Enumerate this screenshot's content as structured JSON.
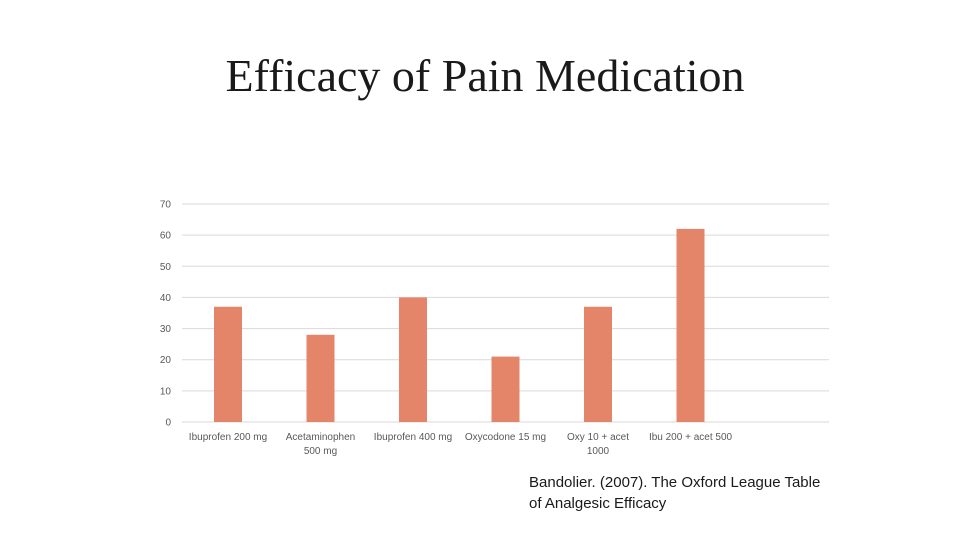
{
  "slide": {
    "title": "Efficacy of Pain Medication",
    "citation": "Bandolier. (2007). The Oxford League Table of Analgesic Efficacy"
  },
  "chart_data": {
    "type": "bar",
    "title": "",
    "xlabel": "",
    "ylabel": "",
    "categories": [
      [
        "Ibuprofen 200 mg"
      ],
      [
        "Acetaminophen",
        "500 mg"
      ],
      [
        "Ibuprofen 400 mg"
      ],
      [
        "Oxycodone 15 mg"
      ],
      [
        "Oxy 10 + acet",
        "1000"
      ],
      [
        "Ibu 200 + acet 500"
      ]
    ],
    "values": [
      37,
      28,
      40,
      21,
      37,
      62
    ],
    "ylim": [
      0,
      70
    ],
    "yticks": [
      0,
      10,
      20,
      30,
      40,
      50,
      60,
      70
    ],
    "grid": true,
    "bar_color": "#e4856a",
    "grid_color": "#d9d9d9"
  }
}
